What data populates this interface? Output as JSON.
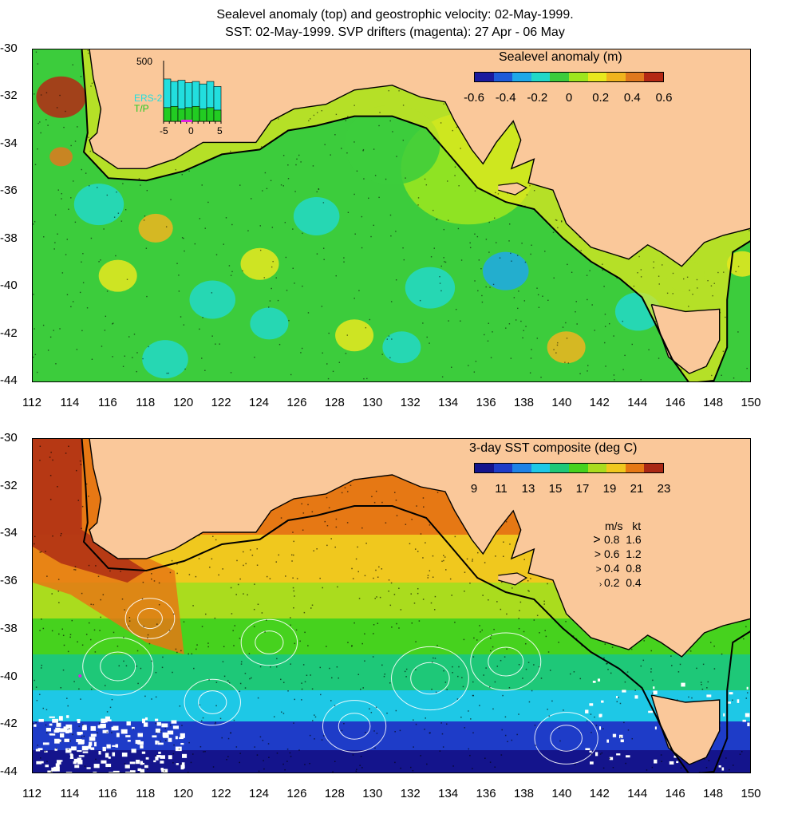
{
  "header": {
    "line1": "Sealevel anomaly (top) and geostrophic velocity: 02-May-1999.",
    "line2": "SST: 02-May-1999. SVP drifters (magenta): 27 Apr - 06 May"
  },
  "axes": {
    "lat_ticks": [
      "-30",
      "-32",
      "-34",
      "-36",
      "-38",
      "-40",
      "-42",
      "-44"
    ],
    "lon_ticks": [
      "112",
      "114",
      "116",
      "118",
      "120",
      "122",
      "124",
      "126",
      "128",
      "130",
      "132",
      "134",
      "136",
      "138",
      "140",
      "142",
      "144",
      "146",
      "148",
      "150"
    ],
    "lon_range": [
      112,
      150
    ],
    "lat_range": [
      -30,
      -44
    ]
  },
  "top_panel": {
    "colorbar_title": "Sealevel anomaly (m)",
    "colorbar_ticks": [
      "-0.6",
      "-0.4",
      "-0.2",
      "0",
      "0.2",
      "0.4",
      "0.6"
    ],
    "colors": [
      "#1a1a9e",
      "#1e5ad8",
      "#1fa8e8",
      "#22d8c8",
      "#3ccc3c",
      "#9ee61e",
      "#e8e81e",
      "#f0b41e",
      "#e0781e",
      "#b42814"
    ],
    "inset": {
      "ymax_label": "500",
      "xtick_labels": [
        "-5",
        "0",
        "5"
      ],
      "series": [
        {
          "name": "ERS-2",
          "color": "#22dede",
          "values": [
            340,
            320,
            330,
            310,
            320,
            300,
            320,
            280
          ]
        },
        {
          "name": "T/P",
          "color": "#22cc22",
          "values": [
            110,
            120,
            100,
            110,
            120,
            100,
            110,
            90
          ]
        }
      ]
    }
  },
  "bottom_panel": {
    "colorbar_title": "3-day SST composite (deg C)",
    "colorbar_ticks": [
      "9",
      "11",
      "13",
      "15",
      "17",
      "19",
      "21",
      "23"
    ],
    "colors": [
      "#14148c",
      "#1e3cc8",
      "#1e82e6",
      "#1ec8e6",
      "#1ec878",
      "#46d21e",
      "#aadc1e",
      "#f0c81e",
      "#e67814",
      "#aa2814"
    ],
    "speed_legend": {
      "header": "m/s   kt",
      "rows": [
        {
          "ms": "0.8",
          "kt": "1.6"
        },
        {
          "ms": "0.6",
          "kt": "1.2"
        },
        {
          "ms": "0.4",
          "kt": "0.8"
        },
        {
          "ms": "0.2",
          "kt": "0.4"
        }
      ]
    }
  },
  "palette": {
    "land": "#fac89a",
    "coast_line": "#000000",
    "contour": "#ffffff"
  }
}
